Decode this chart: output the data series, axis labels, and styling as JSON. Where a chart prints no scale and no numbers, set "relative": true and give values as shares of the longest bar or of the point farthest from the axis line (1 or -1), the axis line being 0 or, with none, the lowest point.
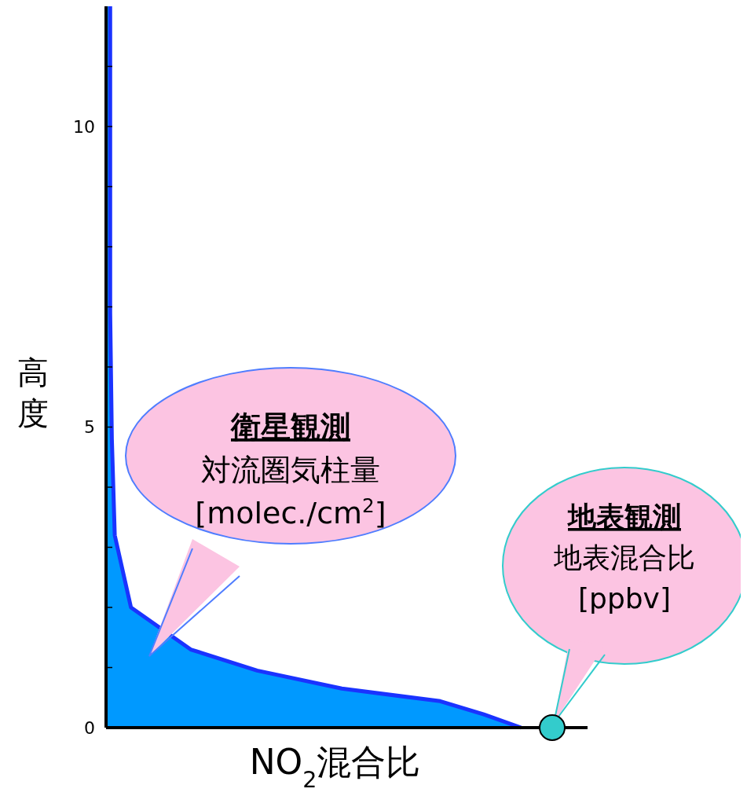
{
  "chart_data": {
    "type": "area",
    "orientation": "horizontal",
    "xlabel": "NO$_{2}$混合比",
    "ylabel": "高度",
    "relative": true,
    "ylim": [
      0,
      12
    ],
    "yticks": [
      0,
      {
        "value": 1,
        "label": null
      },
      {
        "value": 2,
        "label": null
      },
      {
        "value": 3,
        "label": null
      },
      {
        "value": 4,
        "label": null
      },
      5,
      {
        "value": 6,
        "label": null
      },
      {
        "value": 7,
        "label": null
      },
      {
        "value": 8,
        "label": null
      },
      {
        "value": 9,
        "label": null
      },
      10,
      {
        "value": 11,
        "label": null
      }
    ],
    "tick_labels": "y",
    "series": [
      {
        "color": "#0099ff",
        "x": [
          12,
          6.9,
          4.8,
          3.2,
          2,
          1.3,
          0.95,
          0.65,
          0.44,
          0.22,
          0
        ],
        "values": [
          0.01,
          0.01,
          0.014,
          0.021,
          0.06,
          0.204,
          0.364,
          0.568,
          0.805,
          0.91,
          1
        ]
      }
    ],
    "annotations": [
      "衛星観測",
      "対流圏気柱量",
      "[molec./cm$^{2}$]",
      "地表観測",
      "地表混合比",
      "[ppbv]"
    ]
  }
}
